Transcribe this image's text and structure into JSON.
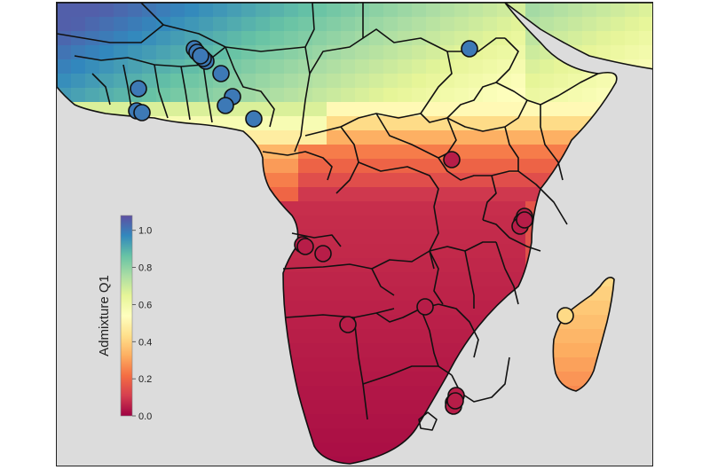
{
  "legend": {
    "title": "Admixture Q1",
    "ticks": [
      {
        "value": 1.0,
        "label": "1.0"
      },
      {
        "value": 0.8,
        "label": "0.8"
      },
      {
        "value": 0.6,
        "label": "0.6"
      },
      {
        "value": 0.4,
        "label": "0.4"
      },
      {
        "value": 0.2,
        "label": "0.2"
      },
      {
        "value": 0.0,
        "label": "0.0"
      }
    ],
    "range": [
      0.0,
      1.08
    ]
  },
  "colors": {
    "ocean": "#dcdcdc",
    "border": "#111111",
    "scale": [
      "#9e0142",
      "#d53e4f",
      "#f46d43",
      "#fdae61",
      "#fee08b",
      "#ffffbf",
      "#e6f598",
      "#abdda4",
      "#66c2a5",
      "#3288bd",
      "#5e4fa2"
    ]
  },
  "chart_data": {
    "type": "map",
    "sample_sites_admixture_q1": [
      1.0,
      1.0,
      1.0,
      1.0,
      1.0,
      1.0,
      1.0,
      1.0,
      1.0,
      1.0,
      1.0,
      1.0,
      1.0,
      1.0,
      0.05,
      0.05,
      0.05,
      0.05,
      0.05,
      0.05,
      0.05,
      0.05,
      0.05,
      0.05,
      0.05,
      0.05,
      0.05,
      0.05,
      0.42
    ]
  }
}
